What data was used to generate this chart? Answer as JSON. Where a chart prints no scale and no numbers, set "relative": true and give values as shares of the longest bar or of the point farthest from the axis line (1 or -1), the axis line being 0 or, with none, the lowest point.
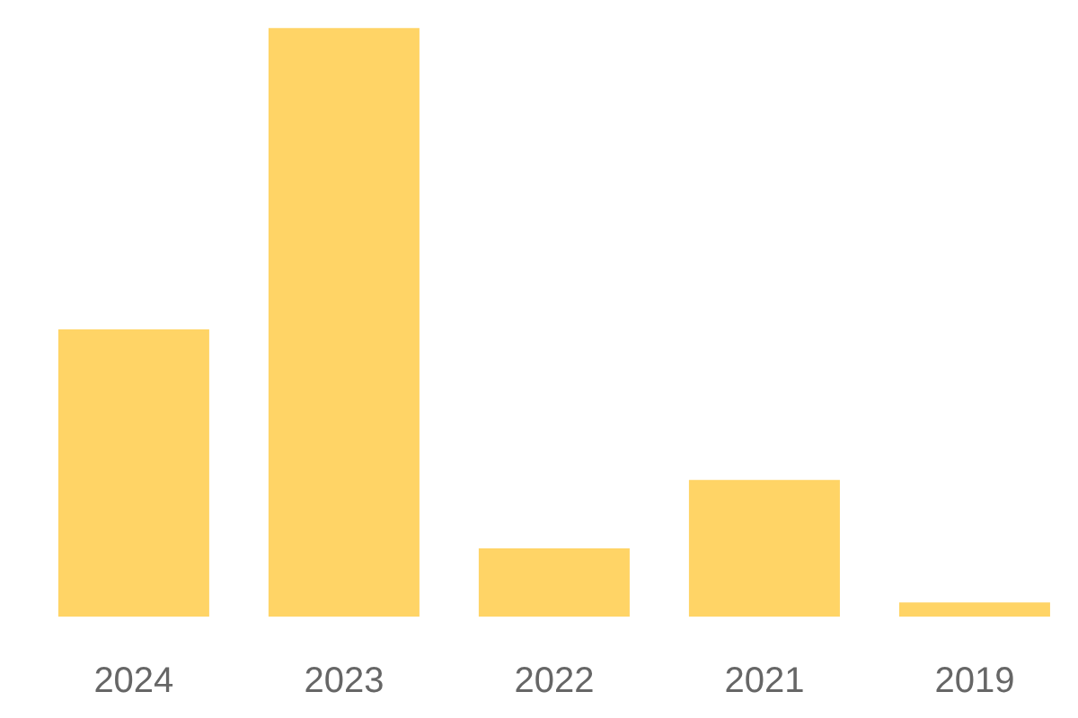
{
  "chart_data": {
    "type": "bar",
    "relative": true,
    "categories": [
      "2024",
      "2023",
      "2022",
      "2021",
      "2019"
    ],
    "values": [
      0.488,
      1,
      0.116,
      0.232,
      0.024
    ],
    "color": "#ffd466",
    "grid": false
  }
}
